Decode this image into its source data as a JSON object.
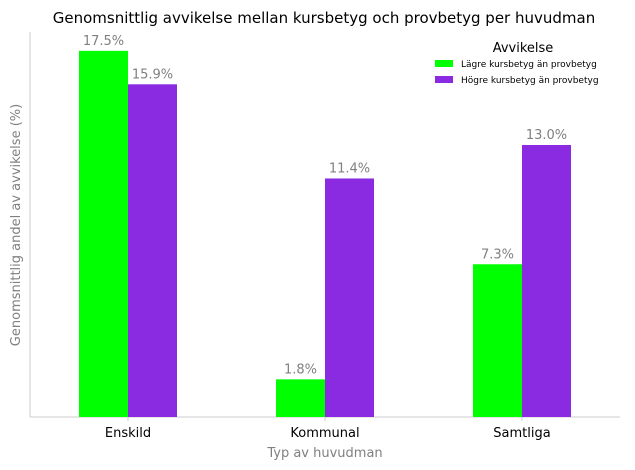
{
  "chart_data": {
    "type": "bar",
    "title": "Genomsnittlig avvikelse mellan kursbetyg och provbetyg per huvudman",
    "xlabel": "Typ av huvudman",
    "ylabel": "Genomsnittlig andel av avvikelse (%)",
    "categories": [
      "Enskild",
      "Kommunal",
      "Samtliga"
    ],
    "ylim": [
      0,
      18.4
    ],
    "grid": false,
    "legend_title": "Avvikelse",
    "legend_position": "top-right",
    "series": [
      {
        "name": "Lägre kursbetyg än provbetyg",
        "color": "#00ff00",
        "values": [
          17.5,
          1.8,
          7.3
        ],
        "labels": [
          "17.5%",
          "1.8%",
          "7.3%"
        ]
      },
      {
        "name": "Högre kursbetyg än provbetyg",
        "color": "#8a2be2",
        "values": [
          15.9,
          11.4,
          13.0
        ],
        "labels": [
          "15.9%",
          "11.4%",
          "13.0%"
        ]
      }
    ]
  }
}
